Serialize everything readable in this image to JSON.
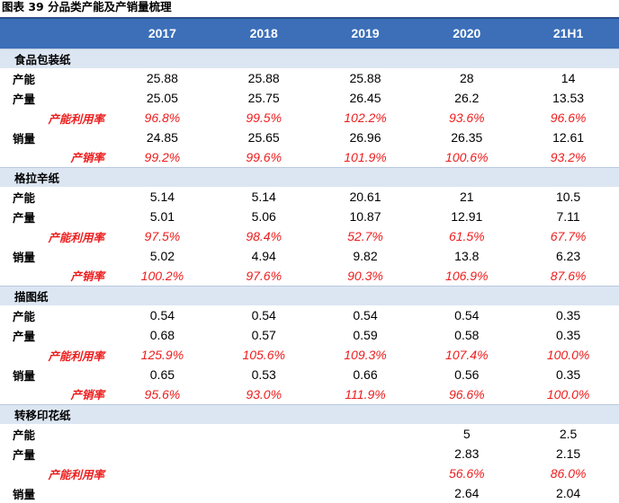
{
  "title": "图表 39 分品类产能及产销量梳理",
  "header": {
    "corner": "",
    "years": [
      "2017",
      "2018",
      "2019",
      "2020",
      "21H1"
    ]
  },
  "sections": [
    {
      "name": "食品包装纸",
      "rows": [
        {
          "label": "产能",
          "values": [
            "25.88",
            "25.88",
            "25.88",
            "28",
            "14"
          ],
          "ratio": false
        },
        {
          "label": "产量",
          "values": [
            "25.05",
            "25.75",
            "26.45",
            "26.2",
            "13.53"
          ],
          "ratio": false
        },
        {
          "label": "产能利用率",
          "values": [
            "96.8%",
            "99.5%",
            "102.2%",
            "93.6%",
            "96.6%"
          ],
          "ratio": true
        },
        {
          "label": "销量",
          "values": [
            "24.85",
            "25.65",
            "26.96",
            "26.35",
            "12.61"
          ],
          "ratio": false
        },
        {
          "label": "产销率",
          "values": [
            "99.2%",
            "99.6%",
            "101.9%",
            "100.6%",
            "93.2%"
          ],
          "ratio": true
        }
      ]
    },
    {
      "name": "格拉辛纸",
      "rows": [
        {
          "label": "产能",
          "values": [
            "5.14",
            "5.14",
            "20.61",
            "21",
            "10.5"
          ],
          "ratio": false
        },
        {
          "label": "产量",
          "values": [
            "5.01",
            "5.06",
            "10.87",
            "12.91",
            "7.11"
          ],
          "ratio": false
        },
        {
          "label": "产能利用率",
          "values": [
            "97.5%",
            "98.4%",
            "52.7%",
            "61.5%",
            "67.7%"
          ],
          "ratio": true
        },
        {
          "label": "销量",
          "values": [
            "5.02",
            "4.94",
            "9.82",
            "13.8",
            "6.23"
          ],
          "ratio": false
        },
        {
          "label": "产销率",
          "values": [
            "100.2%",
            "97.6%",
            "90.3%",
            "106.9%",
            "87.6%"
          ],
          "ratio": true
        }
      ]
    },
    {
      "name": "描图纸",
      "rows": [
        {
          "label": "产能",
          "values": [
            "0.54",
            "0.54",
            "0.54",
            "0.54",
            "0.35"
          ],
          "ratio": false
        },
        {
          "label": "产量",
          "values": [
            "0.68",
            "0.57",
            "0.59",
            "0.58",
            "0.35"
          ],
          "ratio": false
        },
        {
          "label": "产能利用率",
          "values": [
            "125.9%",
            "105.6%",
            "109.3%",
            "107.4%",
            "100.0%"
          ],
          "ratio": true
        },
        {
          "label": "销量",
          "values": [
            "0.65",
            "0.53",
            "0.66",
            "0.56",
            "0.35"
          ],
          "ratio": false
        },
        {
          "label": "产销率",
          "values": [
            "95.6%",
            "93.0%",
            "111.9%",
            "96.6%",
            "100.0%"
          ],
          "ratio": true
        }
      ]
    },
    {
      "name": "转移印花纸",
      "rows": [
        {
          "label": "产能",
          "values": [
            "",
            "",
            "",
            "5",
            "2.5"
          ],
          "ratio": false
        },
        {
          "label": "产量",
          "values": [
            "",
            "",
            "",
            "2.83",
            "2.15"
          ],
          "ratio": false
        },
        {
          "label": "产能利用率",
          "values": [
            "",
            "",
            "",
            "56.6%",
            "86.0%"
          ],
          "ratio": true
        },
        {
          "label": "销量",
          "values": [
            "",
            "",
            "",
            "2.64",
            "2.04"
          ],
          "ratio": false
        }
      ]
    }
  ]
}
